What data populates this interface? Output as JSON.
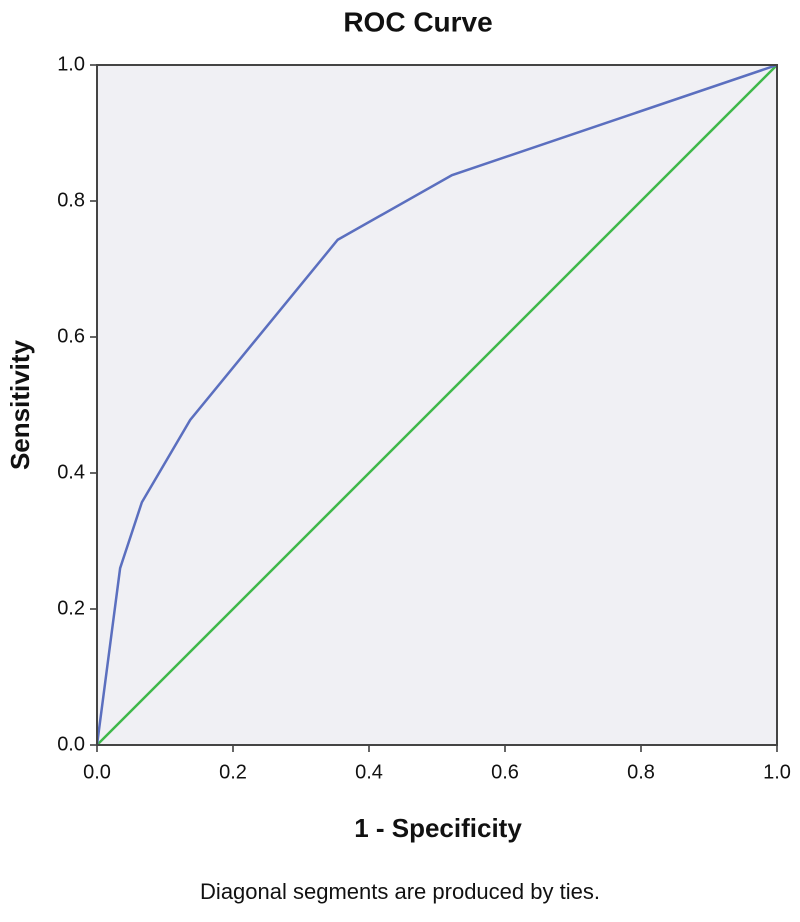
{
  "chart_data": {
    "type": "line",
    "title": "ROC Curve",
    "xlabel": "1 - Specificity",
    "ylabel": "Sensitivity",
    "note": "Diagonal segments are produced by ties.",
    "series": [
      {
        "color": "#5b6fbf",
        "x": [
          0,
          0.034,
          0.066,
          0.137,
          0.354,
          0.522,
          1
        ],
        "values": [
          0,
          0.26,
          0.357,
          0.478,
          0.743,
          0.838,
          1
        ]
      },
      {
        "color": "#3fb84a",
        "x": [
          0,
          1
        ],
        "values": [
          0,
          1
        ]
      }
    ],
    "xlim": [
      0,
      1
    ],
    "ylim": [
      0,
      1
    ],
    "xticks": [
      {
        "value": 0,
        "label": "0.0"
      },
      0.2,
      0.4,
      0.6,
      0.8,
      {
        "value": 1,
        "label": "1.0"
      }
    ],
    "yticks": [
      {
        "value": 0,
        "label": "0.0"
      },
      0.2,
      0.4,
      0.6,
      0.8,
      {
        "value": 1,
        "label": "1.0"
      }
    ],
    "background": "#f0f0f4"
  }
}
